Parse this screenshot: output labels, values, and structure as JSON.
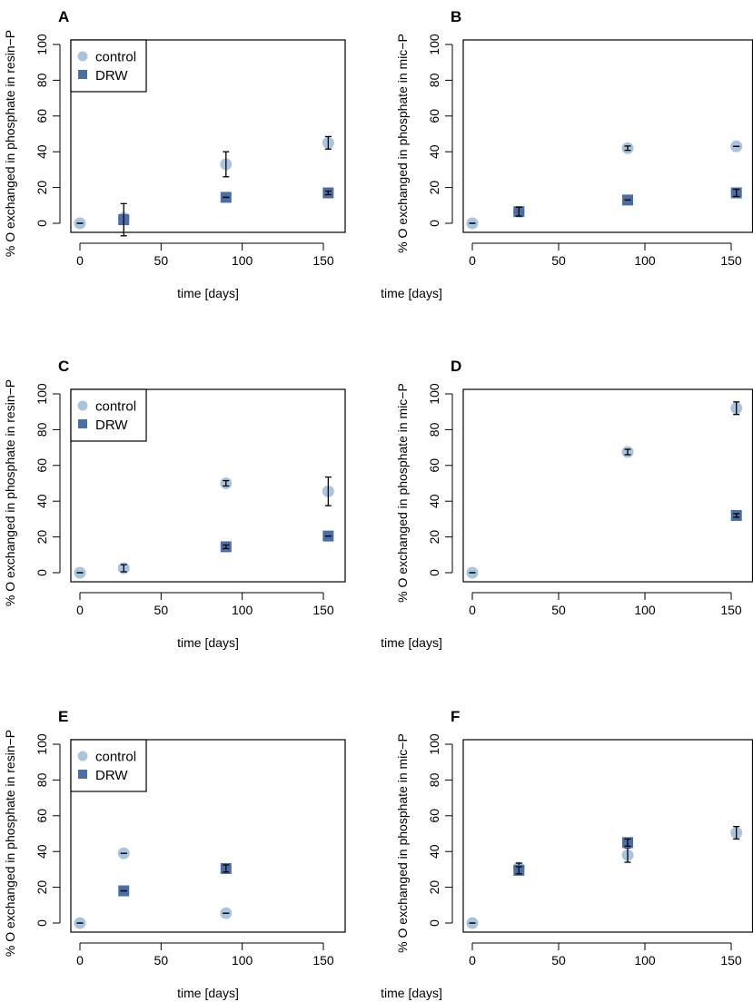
{
  "figure": {
    "ylabel_resin": "% O exchanged in phosphate in resin−P",
    "ylabel_mic": "% O exchanged in phosphate in mic−P"
  },
  "colors": {
    "control": "#a9c4de",
    "drw": "#4a6ea8",
    "errorbar": "#000000"
  },
  "legend": {
    "control": "control",
    "drw": "DRW"
  },
  "chart_data": [
    {
      "panel": "A",
      "type": "scatter",
      "xlabel": "time [days]",
      "ylabel": "% O exchanged in phosphate in resin−P",
      "xlim": [
        0,
        155
      ],
      "ylim": [
        0,
        100
      ],
      "xticks": [
        0,
        50,
        100,
        150
      ],
      "yticks": [
        0,
        20,
        40,
        60,
        80,
        100
      ],
      "legend": true,
      "series": [
        {
          "name": "control",
          "marker": "circle",
          "points": [
            {
              "x": 0,
              "y": 0,
              "err": 0
            },
            {
              "x": 27,
              "y": 3,
              "err": 0
            },
            {
              "x": 90,
              "y": 33,
              "err": 7
            },
            {
              "x": 153,
              "y": 45,
              "err": 3.5
            }
          ]
        },
        {
          "name": "DRW",
          "marker": "square",
          "points": [
            {
              "x": 27,
              "y": 2,
              "err": 9
            },
            {
              "x": 90,
              "y": 14.5,
              "err": 0
            },
            {
              "x": 153,
              "y": 17,
              "err": 1
            }
          ]
        }
      ]
    },
    {
      "panel": "B",
      "type": "scatter",
      "xlabel": "time [days]",
      "ylabel": "% O exchanged in phosphate in mic−P",
      "xlim": [
        0,
        155
      ],
      "ylim": [
        0,
        100
      ],
      "xticks": [
        0,
        50,
        100,
        150
      ],
      "yticks": [
        0,
        20,
        40,
        60,
        80,
        100
      ],
      "legend": false,
      "series": [
        {
          "name": "control",
          "marker": "circle",
          "points": [
            {
              "x": 0,
              "y": 0,
              "err": 0
            },
            {
              "x": 27,
              "y": 6.5,
              "err": 0
            },
            {
              "x": 90,
              "y": 42,
              "err": 1.2
            },
            {
              "x": 153,
              "y": 43,
              "err": 0
            }
          ]
        },
        {
          "name": "DRW",
          "marker": "square",
          "points": [
            {
              "x": 27,
              "y": 6.5,
              "err": 2.5
            },
            {
              "x": 90,
              "y": 13,
              "err": 0
            },
            {
              "x": 153,
              "y": 17,
              "err": 2
            }
          ]
        }
      ]
    },
    {
      "panel": "C",
      "type": "scatter",
      "xlabel": "time [days]",
      "ylabel": "% O exchanged in phosphate in resin−P",
      "xlim": [
        0,
        155
      ],
      "ylim": [
        0,
        100
      ],
      "xticks": [
        0,
        50,
        100,
        150
      ],
      "yticks": [
        0,
        20,
        40,
        60,
        80,
        100
      ],
      "legend": true,
      "series": [
        {
          "name": "control",
          "marker": "circle",
          "points": [
            {
              "x": 0,
              "y": 0,
              "err": 0
            },
            {
              "x": 27,
              "y": 2.5,
              "err": 2
            },
            {
              "x": 90,
              "y": 50,
              "err": 1.5
            },
            {
              "x": 153,
              "y": 45.5,
              "err": 8
            }
          ]
        },
        {
          "name": "DRW",
          "marker": "square",
          "points": [
            {
              "x": 90,
              "y": 14.5,
              "err": 1
            },
            {
              "x": 153,
              "y": 20.5,
              "err": 0
            }
          ]
        }
      ]
    },
    {
      "panel": "D",
      "type": "scatter",
      "xlabel": "time [days]",
      "ylabel": "% O exchanged in phosphate in mic−P",
      "xlim": [
        0,
        155
      ],
      "ylim": [
        0,
        100
      ],
      "xticks": [
        0,
        50,
        100,
        150
      ],
      "yticks": [
        0,
        20,
        40,
        60,
        80,
        100
      ],
      "legend": false,
      "series": [
        {
          "name": "control",
          "marker": "circle",
          "points": [
            {
              "x": 0,
              "y": 0,
              "err": 0
            },
            {
              "x": 90,
              "y": 67.5,
              "err": 1.5
            },
            {
              "x": 153,
              "y": 92,
              "err": 3.5
            }
          ]
        },
        {
          "name": "DRW",
          "marker": "square",
          "points": [
            {
              "x": 153,
              "y": 32,
              "err": 1
            }
          ]
        }
      ]
    },
    {
      "panel": "E",
      "type": "scatter",
      "xlabel": "time [days]",
      "ylabel": "% O exchanged in phosphate in resin−P",
      "xlim": [
        0,
        155
      ],
      "ylim": [
        0,
        100
      ],
      "xticks": [
        0,
        50,
        100,
        150
      ],
      "yticks": [
        0,
        20,
        40,
        60,
        80,
        100
      ],
      "legend": true,
      "series": [
        {
          "name": "control",
          "marker": "circle",
          "points": [
            {
              "x": 0,
              "y": 0,
              "err": 0
            },
            {
              "x": 27,
              "y": 39,
              "err": 0
            },
            {
              "x": 90,
              "y": 5.5,
              "err": 0
            }
          ]
        },
        {
          "name": "DRW",
          "marker": "square",
          "points": [
            {
              "x": 27,
              "y": 18,
              "err": 0
            },
            {
              "x": 90,
              "y": 30.5,
              "err": 2
            }
          ]
        }
      ]
    },
    {
      "panel": "F",
      "type": "scatter",
      "xlabel": "time [days]",
      "ylabel": "% O exchanged in phosphate in mic−P",
      "xlim": [
        0,
        155
      ],
      "ylim": [
        0,
        100
      ],
      "xticks": [
        0,
        50,
        100,
        150
      ],
      "yticks": [
        0,
        20,
        40,
        60,
        80,
        100
      ],
      "legend": false,
      "series": [
        {
          "name": "control",
          "marker": "circle",
          "points": [
            {
              "x": 0,
              "y": 0,
              "err": 0
            },
            {
              "x": 27,
              "y": 31,
              "err": 2.5
            },
            {
              "x": 90,
              "y": 38,
              "err": 4
            },
            {
              "x": 153,
              "y": 50.5,
              "err": 3.5
            }
          ]
        },
        {
          "name": "DRW",
          "marker": "square",
          "points": [
            {
              "x": 27,
              "y": 29.5,
              "err": 2
            },
            {
              "x": 90,
              "y": 45,
              "err": 2
            }
          ]
        }
      ]
    }
  ]
}
